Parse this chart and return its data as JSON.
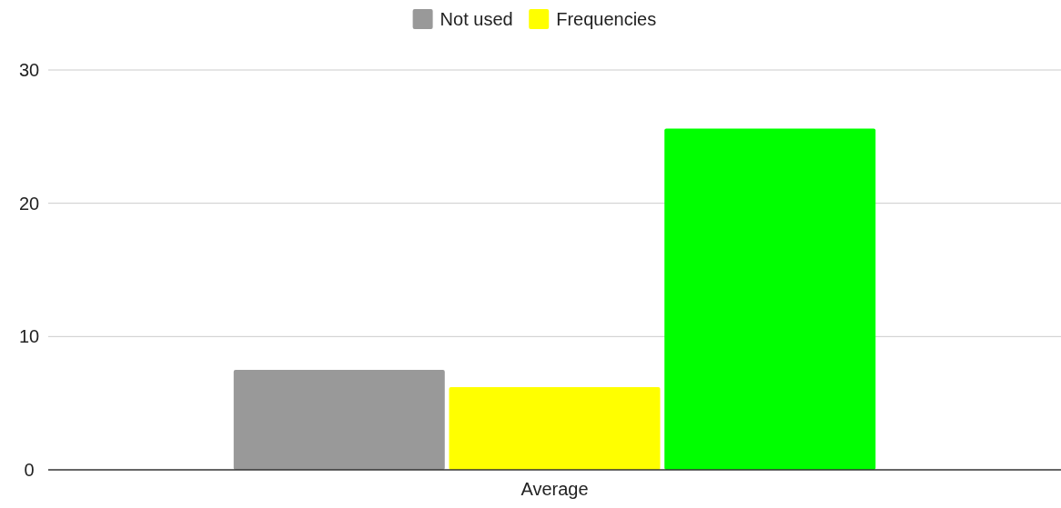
{
  "chart_data": {
    "type": "bar",
    "categories": [
      "Average"
    ],
    "series": [
      {
        "name": "Not used",
        "color": "#999999",
        "values": [
          7.5
        ]
      },
      {
        "name": "Frequencies",
        "color": "#ffff00",
        "values": [
          6.2
        ]
      },
      {
        "color": "#00ff00",
        "values": [
          25.6
        ]
      }
    ],
    "ylim": [
      0,
      30
    ],
    "yticks": [
      0,
      10,
      20,
      30
    ],
    "grid": "y",
    "legend": "top"
  }
}
